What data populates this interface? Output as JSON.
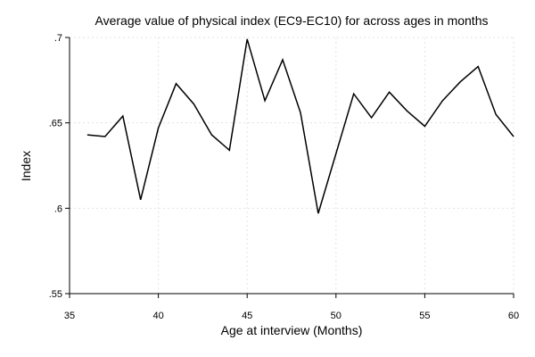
{
  "chart_data": {
    "type": "line",
    "title": "Average value of physical index (EC9-EC10) for across ages in months",
    "xlabel": "Age at interview (Months)",
    "ylabel": "Index",
    "xlim": [
      35,
      60
    ],
    "ylim": [
      0.55,
      0.7
    ],
    "x_ticks": [
      35,
      40,
      45,
      50,
      55,
      60
    ],
    "x_tick_labels": [
      "35",
      "40",
      "45",
      "50",
      "55",
      "60"
    ],
    "y_ticks": [
      0.55,
      0.6,
      0.65,
      0.7
    ],
    "y_tick_labels": [
      ".55",
      ".6",
      ".65",
      ".7"
    ],
    "grid": true,
    "series": [
      {
        "color": "#000000",
        "x": [
          36,
          37,
          38,
          39,
          40,
          41,
          42,
          43,
          44,
          45,
          46,
          47,
          48,
          49,
          50,
          51,
          52,
          53,
          54,
          55,
          56,
          57,
          58,
          59,
          60
        ],
        "values": [
          0.643,
          0.642,
          0.654,
          0.605,
          0.647,
          0.673,
          0.661,
          0.643,
          0.634,
          0.699,
          0.663,
          0.687,
          0.656,
          0.597,
          0.632,
          0.667,
          0.653,
          0.668,
          0.657,
          0.648,
          0.663,
          0.674,
          0.683,
          0.655,
          0.642
        ]
      }
    ]
  }
}
